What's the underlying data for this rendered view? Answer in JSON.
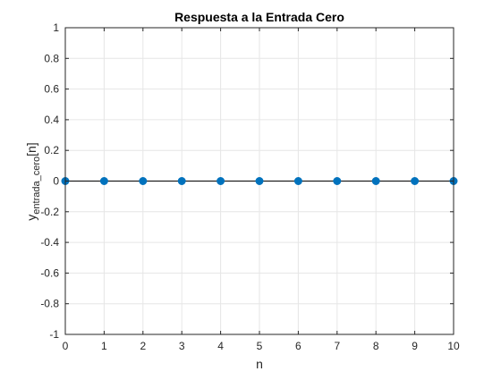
{
  "chart_data": {
    "type": "scatter",
    "title": "Respuesta a la Entrada Cero",
    "xlabel": "n",
    "ylabel": {
      "main": "y",
      "subscript": "entrada_cero",
      "suffix": "[n]"
    },
    "x": [
      0,
      1,
      2,
      3,
      4,
      5,
      6,
      7,
      8,
      9,
      10
    ],
    "y": [
      0,
      0,
      0,
      0,
      0,
      0,
      0,
      0,
      0,
      0,
      0
    ],
    "xlim": [
      0,
      10
    ],
    "ylim": [
      -1,
      1
    ],
    "xticks": [
      0,
      1,
      2,
      3,
      4,
      5,
      6,
      7,
      8,
      9,
      10
    ],
    "xtick_labels": [
      "0",
      "1",
      "2",
      "3",
      "4",
      "5",
      "6",
      "7",
      "8",
      "9",
      "10"
    ],
    "yticks": [
      -1,
      -0.8,
      -0.6,
      -0.4,
      -0.2,
      0,
      0.2,
      0.4,
      0.6,
      0.8,
      1
    ],
    "ytick_labels": [
      "-1",
      "-0.8",
      "-0.6",
      "-0.4",
      "-0.2",
      "0",
      "0.2",
      "0.4",
      "0.6",
      "0.8",
      "1"
    ],
    "grid": true,
    "marker_color": "#0072BD",
    "baseline": 0,
    "baseline_color": "#000000"
  }
}
